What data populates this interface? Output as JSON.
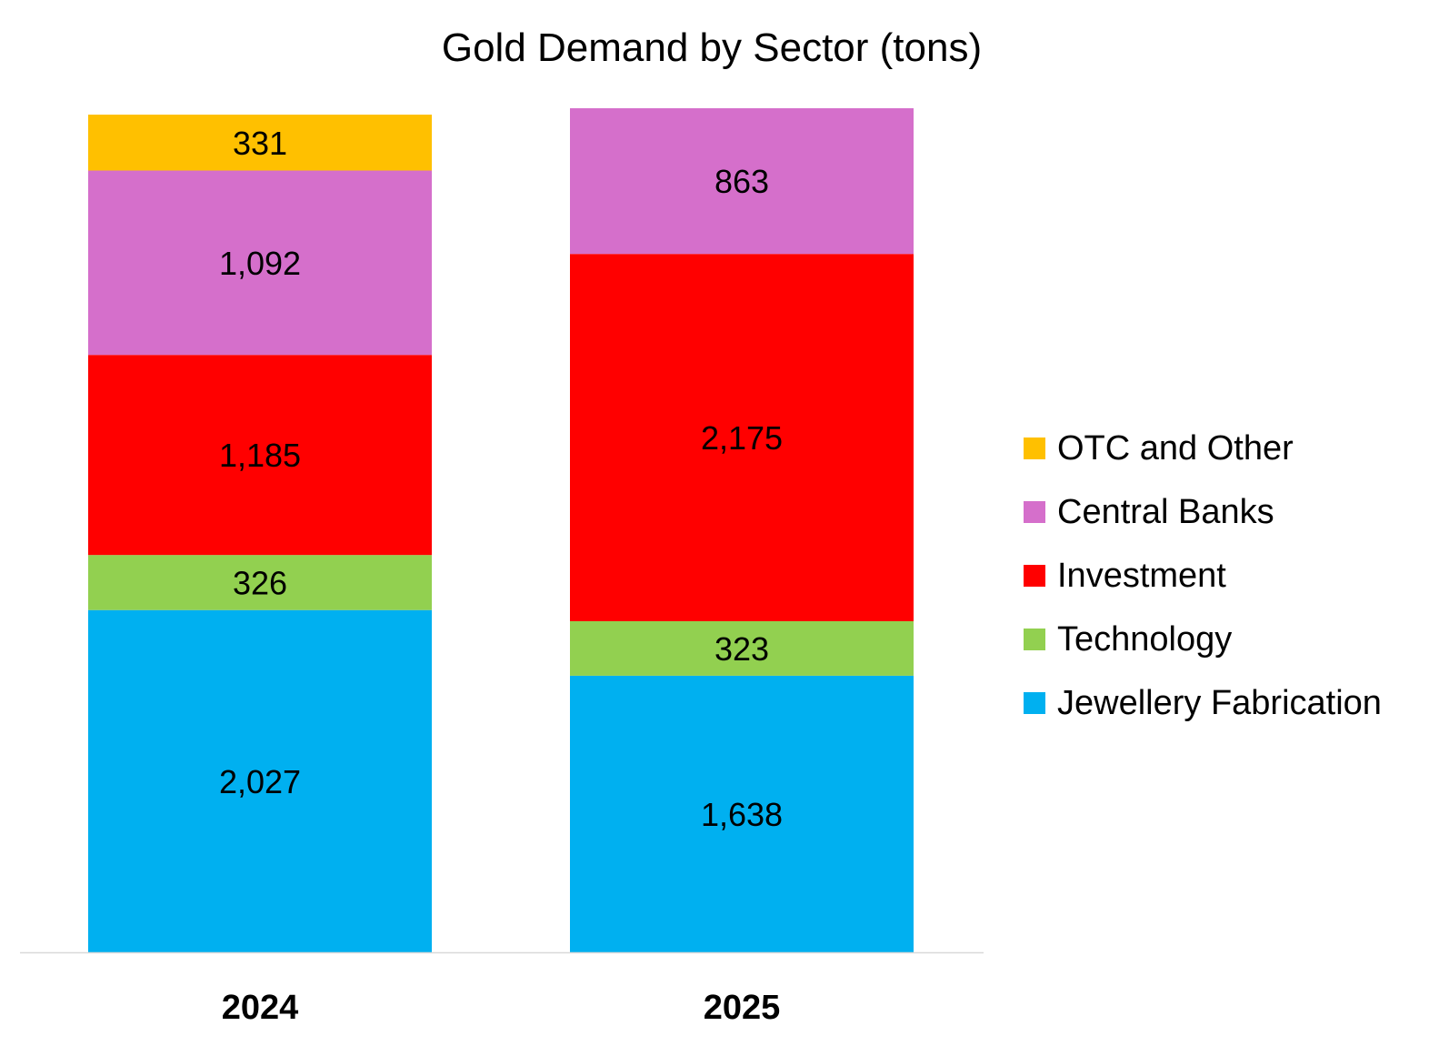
{
  "chart_data": {
    "type": "bar",
    "stacked": true,
    "title": "Gold Demand by Sector (tons)",
    "xlabel": "",
    "ylabel": "",
    "ylim": [
      0,
      5000
    ],
    "grid": false,
    "legend_position": "right",
    "categories": [
      "2024",
      "2025"
    ],
    "series": [
      {
        "name": "Jewellery Fabrication",
        "color": "#00B0F0",
        "values": [
          2027,
          1638
        ],
        "labels": [
          "2,027",
          "1,638"
        ]
      },
      {
        "name": "Technology",
        "color": "#92D050",
        "values": [
          326,
          323
        ],
        "labels": [
          "326",
          "323"
        ]
      },
      {
        "name": "Investment",
        "color": "#FF0000",
        "values": [
          1185,
          2175
        ],
        "labels": [
          "1,185",
          "2,175"
        ]
      },
      {
        "name": "Central Banks",
        "color": "#D56FCB",
        "values": [
          1092,
          863
        ],
        "labels": [
          "1,092",
          "863"
        ]
      },
      {
        "name": "OTC and Other",
        "color": "#FFC000",
        "values": [
          331,
          0
        ],
        "labels": [
          "331",
          ""
        ]
      }
    ]
  }
}
